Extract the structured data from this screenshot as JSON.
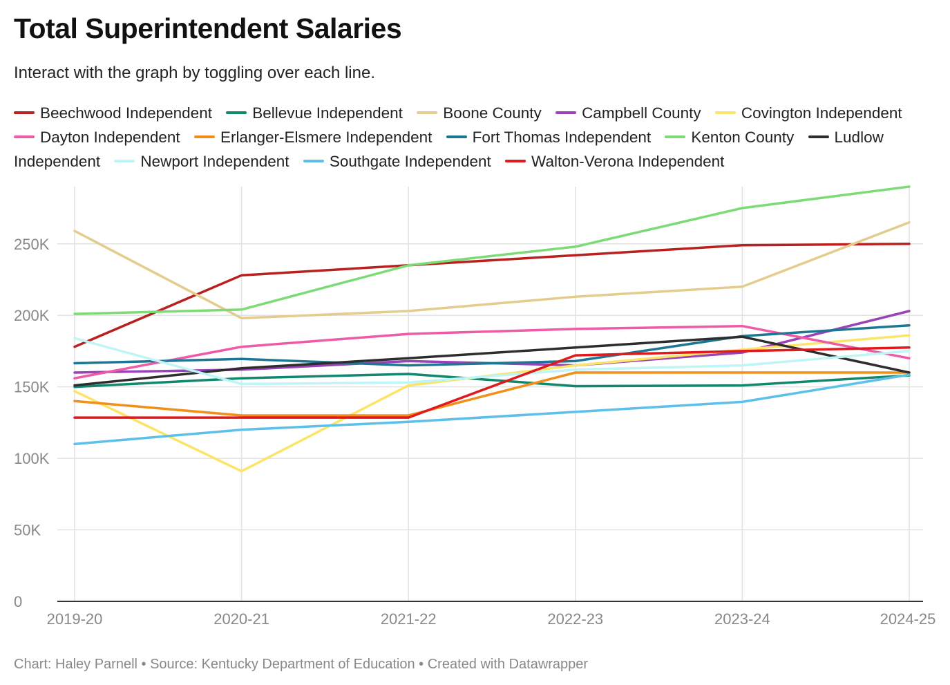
{
  "title": "Total Superintendent Salaries",
  "subtitle": "Interact with the graph by toggling over each line.",
  "footer": "Chart: Haley Parnell • Source: Kentucky Department of Education • Created with Datawrapper",
  "chart_data": {
    "type": "line",
    "title": "Total Superintendent Salaries",
    "subtitle": "Interact with the graph by toggling over each line.",
    "xlabel": "",
    "ylabel": "",
    "categories": [
      "2019-20",
      "2020-21",
      "2021-22",
      "2022-23",
      "2023-24",
      "2024-25"
    ],
    "ylim": [
      0,
      290000
    ],
    "yticks": [
      0,
      50000,
      100000,
      150000,
      200000,
      250000
    ],
    "ytick_labels": [
      "0",
      "50K",
      "100K",
      "150K",
      "200K",
      "250K"
    ],
    "grid": true,
    "legend_position": "top",
    "series": [
      {
        "name": "Beechwood Independent",
        "color": "#b8211f",
        "values": [
          178000,
          228000,
          235000,
          242000,
          249000,
          250000
        ]
      },
      {
        "name": "Bellevue Independent",
        "color": "#11876e",
        "values": [
          150000,
          156000,
          159000,
          150500,
          151000,
          158000
        ]
      },
      {
        "name": "Boone County",
        "color": "#e3cc8d",
        "values": [
          259000,
          198000,
          203000,
          213000,
          220000,
          265000
        ]
      },
      {
        "name": "Campbell County",
        "color": "#9a42b8",
        "values": [
          160000,
          162000,
          168000,
          165000,
          174000,
          203000
        ]
      },
      {
        "name": "Covington Independent",
        "color": "#fbe467",
        "values": [
          147000,
          91000,
          151000,
          165000,
          176000,
          186000
        ]
      },
      {
        "name": "Dayton Independent",
        "color": "#ef5aa7",
        "values": [
          156000,
          178000,
          187000,
          190500,
          192500,
          170000
        ]
      },
      {
        "name": "Erlanger-Elsmere Independent",
        "color": "#f18f1b",
        "values": [
          140000,
          130000,
          130000,
          160000,
          160000,
          160000
        ]
      },
      {
        "name": "Fort Thomas Independent",
        "color": "#1d7693",
        "values": [
          166500,
          169500,
          165000,
          168000,
          185500,
          193000
        ]
      },
      {
        "name": "Kenton County",
        "color": "#7ddb76",
        "values": [
          201000,
          204000,
          235000,
          248000,
          275000,
          290000
        ]
      },
      {
        "name": "Ludlow Independent",
        "color": "#2d2d2d",
        "values": [
          151000,
          163000,
          170000,
          177500,
          185000,
          160000
        ]
      },
      {
        "name": "Newport Independent",
        "color": "#bff5f6",
        "values": [
          184000,
          152000,
          153000,
          162000,
          165000,
          175000
        ]
      },
      {
        "name": "Southgate Independent",
        "color": "#5cc0ea",
        "values": [
          110000,
          120000,
          125500,
          132500,
          139500,
          158500
        ]
      },
      {
        "name": "Walton-Verona Independent",
        "color": "#e0191c",
        "values": [
          128500,
          128500,
          128500,
          172000,
          175000,
          177500
        ]
      }
    ]
  }
}
